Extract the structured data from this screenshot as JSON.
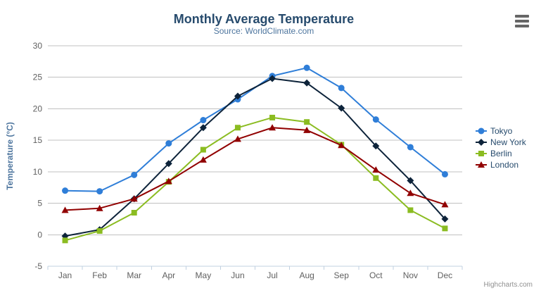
{
  "chart_data": {
    "type": "line",
    "title": "Monthly Average Temperature",
    "subtitle": "Source: WorldClimate.com",
    "xlabel": "",
    "ylabel": "Temperature (°C)",
    "ylim": [
      -5,
      30
    ],
    "ytick_step": 5,
    "grid": true,
    "legend_position": "right",
    "credits": "Highcharts.com",
    "categories": [
      "Jan",
      "Feb",
      "Mar",
      "Apr",
      "May",
      "Jun",
      "Jul",
      "Aug",
      "Sep",
      "Oct",
      "Nov",
      "Dec"
    ],
    "series": [
      {
        "name": "Tokyo",
        "color": "#2f7ed8",
        "symbol": "circle",
        "values": [
          7.0,
          6.9,
          9.5,
          14.5,
          18.2,
          21.5,
          25.2,
          26.5,
          23.3,
          18.3,
          13.9,
          9.6
        ]
      },
      {
        "name": "New York",
        "color": "#0d233a",
        "symbol": "diamond",
        "values": [
          -0.2,
          0.8,
          5.7,
          11.3,
          17.0,
          22.0,
          24.8,
          24.1,
          20.1,
          14.1,
          8.6,
          2.5
        ]
      },
      {
        "name": "Berlin",
        "color": "#8bbc21",
        "symbol": "square",
        "values": [
          -0.9,
          0.6,
          3.5,
          8.4,
          13.5,
          17.0,
          18.6,
          17.9,
          14.3,
          9.0,
          3.9,
          1.0
        ]
      },
      {
        "name": "London",
        "color": "#910000",
        "symbol": "triangle",
        "values": [
          3.9,
          4.2,
          5.7,
          8.5,
          11.9,
          15.2,
          17.0,
          16.6,
          14.2,
          10.3,
          6.6,
          4.8
        ]
      }
    ]
  },
  "colors": {
    "title_text": "#274b6d",
    "subtitle_text": "#4d759e",
    "axis_title_text": "#4d759e",
    "axis_label_text": "#606060",
    "gridline": "#c0c0c0",
    "axis_line": "#c0d0e0",
    "legend_text": "#274b6d",
    "credits_text": "#909090",
    "menu_icon": "#666666"
  },
  "icons": {
    "export_menu": "hamburger-menu-icon"
  }
}
